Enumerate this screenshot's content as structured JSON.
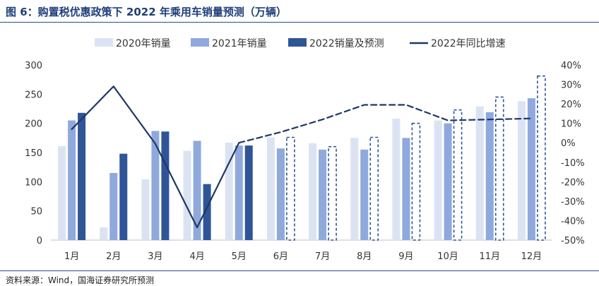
{
  "title": "图 6：购置税优惠政策下 2022 年乘用车销量预测（万辆）",
  "source": "资料来源：Wind，国海证券研究所预测",
  "chart_data": {
    "type": "bar",
    "categories": [
      "1月",
      "2月",
      "3月",
      "4月",
      "5月",
      "6月",
      "7月",
      "8月",
      "9月",
      "10月",
      "11月",
      "12月"
    ],
    "series": [
      {
        "name": "2020年销量",
        "type": "bar",
        "color": "#dbe3f3",
        "values": [
          161,
          22,
          104,
          153,
          167,
          176,
          166,
          175,
          208,
          205,
          229,
          238
        ]
      },
      {
        "name": "2021年销量",
        "type": "bar",
        "color": "#8fa9dc",
        "values": [
          205,
          115,
          187,
          170,
          162,
          157,
          155,
          155,
          175,
          200,
          219,
          243
        ]
      },
      {
        "name": "2022销量及预测",
        "type": "bar",
        "color": "#2f5597",
        "values": [
          218,
          148,
          186,
          96,
          162,
          176,
          160,
          176,
          200,
          223,
          245,
          281
        ],
        "forecast_from_index": 5
      },
      {
        "name": "2022年同比增速",
        "type": "line",
        "axis": "right",
        "color": "#1f3864",
        "values": [
          7.0,
          29.0,
          -0.5,
          -43.5,
          0.0,
          5.5,
          12.0,
          19.5,
          19.5,
          11.5,
          12.0,
          12.5
        ],
        "forecast_from_index": 4
      }
    ],
    "y_left": {
      "ylim": [
        0,
        300
      ],
      "ticks": [
        "0",
        "50",
        "100",
        "150",
        "200",
        "250",
        "300"
      ]
    },
    "y_right": {
      "ylim": [
        -50,
        40
      ],
      "ticks": [
        "-50%",
        "-40%",
        "-30%",
        "-20%",
        "-10%",
        "0%",
        "10%",
        "20%",
        "30%",
        "40%"
      ]
    },
    "grid": false,
    "legend_position": "top"
  }
}
